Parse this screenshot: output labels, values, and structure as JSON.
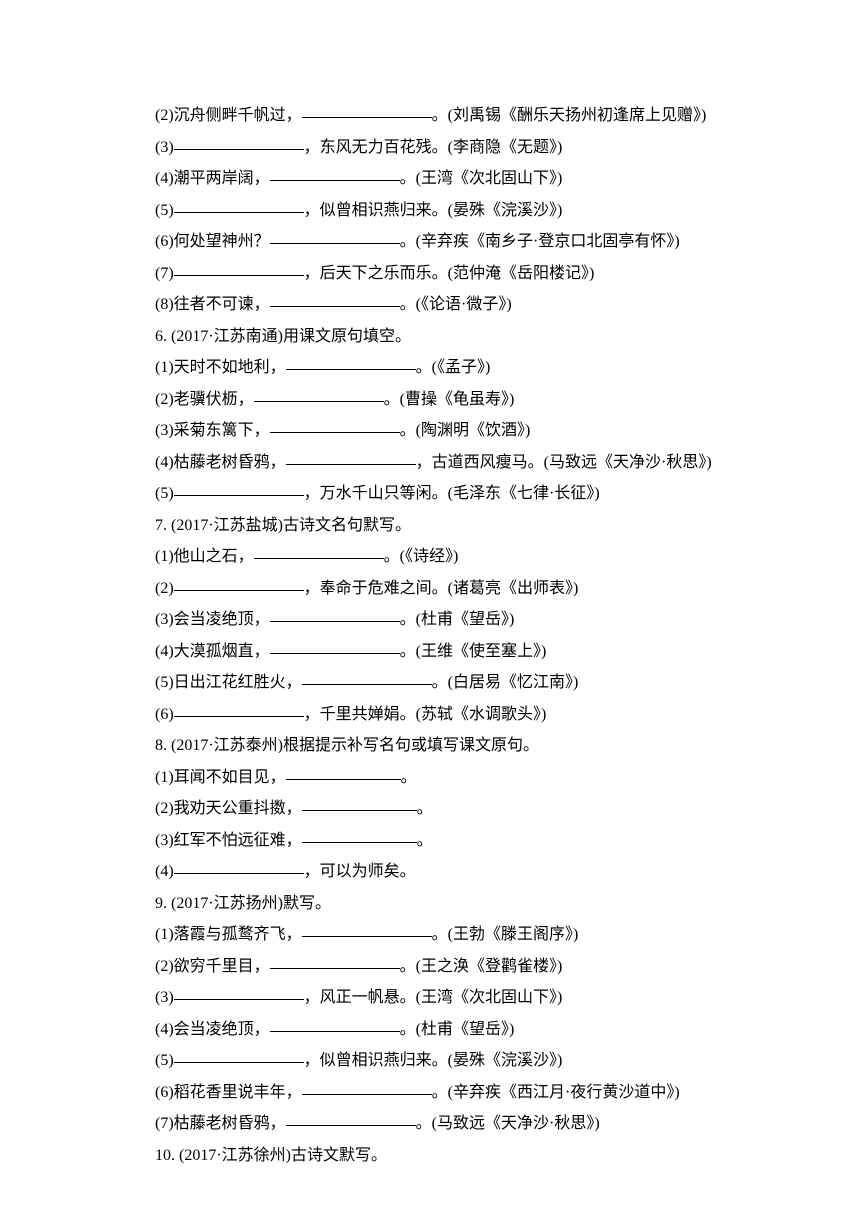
{
  "lines": [
    {
      "parts": [
        "(2)沉舟侧畔千帆过，",
        {
          "blank": "long"
        },
        "。(刘禹锡《酬乐天扬州初逢席上见赠》)"
      ]
    },
    {
      "parts": [
        "(3)",
        {
          "blank": "long"
        },
        "，东风无力百花残。(李商隐《无题》)"
      ]
    },
    {
      "parts": [
        "(4)潮平两岸阔，",
        {
          "blank": "long"
        },
        "。(王湾《次北固山下》)"
      ]
    },
    {
      "parts": [
        "(5)",
        {
          "blank": "long"
        },
        "，似曾相识燕归来。(晏殊《浣溪沙》)"
      ]
    },
    {
      "parts": [
        "(6)何处望神州？",
        {
          "blank": "long"
        },
        "。(辛弃疾《南乡子·登京口北固亭有怀》)"
      ]
    },
    {
      "parts": [
        "(7)",
        {
          "blank": "long"
        },
        "，后天下之乐而乐。(范仲淹《岳阳楼记》)"
      ]
    },
    {
      "parts": [
        "(8)往者不可谏，",
        {
          "blank": "long"
        },
        "。(《论语·微子》)"
      ]
    },
    {
      "parts": [
        "6. (2017·江苏南通)用课文原句填空。"
      ]
    },
    {
      "parts": [
        "(1)天时不如地利，",
        {
          "blank": "long"
        },
        "。(《孟子》)"
      ]
    },
    {
      "parts": [
        "(2)老骥伏枥，",
        {
          "blank": "long"
        },
        "。(曹操《龟虽寿》)"
      ]
    },
    {
      "parts": [
        "(3)采菊东篱下，",
        {
          "blank": "long"
        },
        "。(陶渊明《饮酒》)"
      ]
    },
    {
      "parts": [
        "(4)枯藤老树昏鸦，",
        {
          "blank": "long"
        },
        "，古道西风瘦马。(马致远《天净沙·秋思》)"
      ]
    },
    {
      "parts": [
        "(5)",
        {
          "blank": "long"
        },
        "，万水千山只等闲。(毛泽东《七律·长征》)"
      ]
    },
    {
      "parts": [
        "7. (2017·江苏盐城)古诗文名句默写。"
      ]
    },
    {
      "parts": [
        "(1)他山之石，",
        {
          "blank": "long"
        },
        "。(《诗经》)"
      ]
    },
    {
      "parts": [
        "(2)",
        {
          "blank": "long"
        },
        "，奉命于危难之间。(诸葛亮《出师表》)"
      ]
    },
    {
      "parts": [
        "(3)会当凌绝顶，",
        {
          "blank": "long"
        },
        "。(杜甫《望岳》)"
      ]
    },
    {
      "parts": [
        "(4)大漠孤烟直，",
        {
          "blank": "long"
        },
        "。(王维《使至塞上》)"
      ]
    },
    {
      "parts": [
        "(5)日出江花红胜火，",
        {
          "blank": "long"
        },
        "。(白居易《忆江南》)"
      ]
    },
    {
      "parts": [
        "(6)",
        {
          "blank": "long"
        },
        "，千里共婵娟。(苏轼《水调歌头》)"
      ]
    },
    {
      "parts": [
        "8. (2017·江苏泰州)根据提示补写名句或填写课文原句。"
      ]
    },
    {
      "parts": [
        "(1)耳闻不如目见，",
        {
          "blank": "med"
        },
        "。"
      ]
    },
    {
      "parts": [
        "(2)我劝天公重抖擞，",
        {
          "blank": "med"
        },
        "。"
      ]
    },
    {
      "parts": [
        "(3)红军不怕远征难，",
        {
          "blank": "med"
        },
        "。"
      ]
    },
    {
      "parts": [
        "(4)",
        {
          "blank": "long"
        },
        "，可以为师矣。"
      ]
    },
    {
      "parts": [
        "9. (2017·江苏扬州)默写。"
      ]
    },
    {
      "parts": [
        "(1)落霞与孤鹜齐飞，",
        {
          "blank": "long"
        },
        "。(王勃《滕王阁序》)"
      ]
    },
    {
      "parts": [
        "(2)欲穷千里目，",
        {
          "blank": "long"
        },
        "。(王之涣《登鹳雀楼》)"
      ]
    },
    {
      "parts": [
        "(3)",
        {
          "blank": "long"
        },
        "，风正一帆悬。(王湾《次北固山下》)"
      ]
    },
    {
      "parts": [
        "(4)会当凌绝顶，",
        {
          "blank": "long"
        },
        "。(杜甫《望岳》)"
      ]
    },
    {
      "parts": [
        "(5)",
        {
          "blank": "long"
        },
        "，似曾相识燕归来。(晏殊《浣溪沙》)"
      ]
    },
    {
      "parts": [
        "(6)稻花香里说丰年，",
        {
          "blank": "long"
        },
        "。(辛弃疾《西江月·夜行黄沙道中》)"
      ]
    },
    {
      "parts": [
        "(7)枯藤老树昏鸦，",
        {
          "blank": "long"
        },
        "。(马致远《天净沙·秋思》)"
      ]
    },
    {
      "parts": [
        "10. (2017·江苏徐州)古诗文默写。"
      ]
    }
  ]
}
